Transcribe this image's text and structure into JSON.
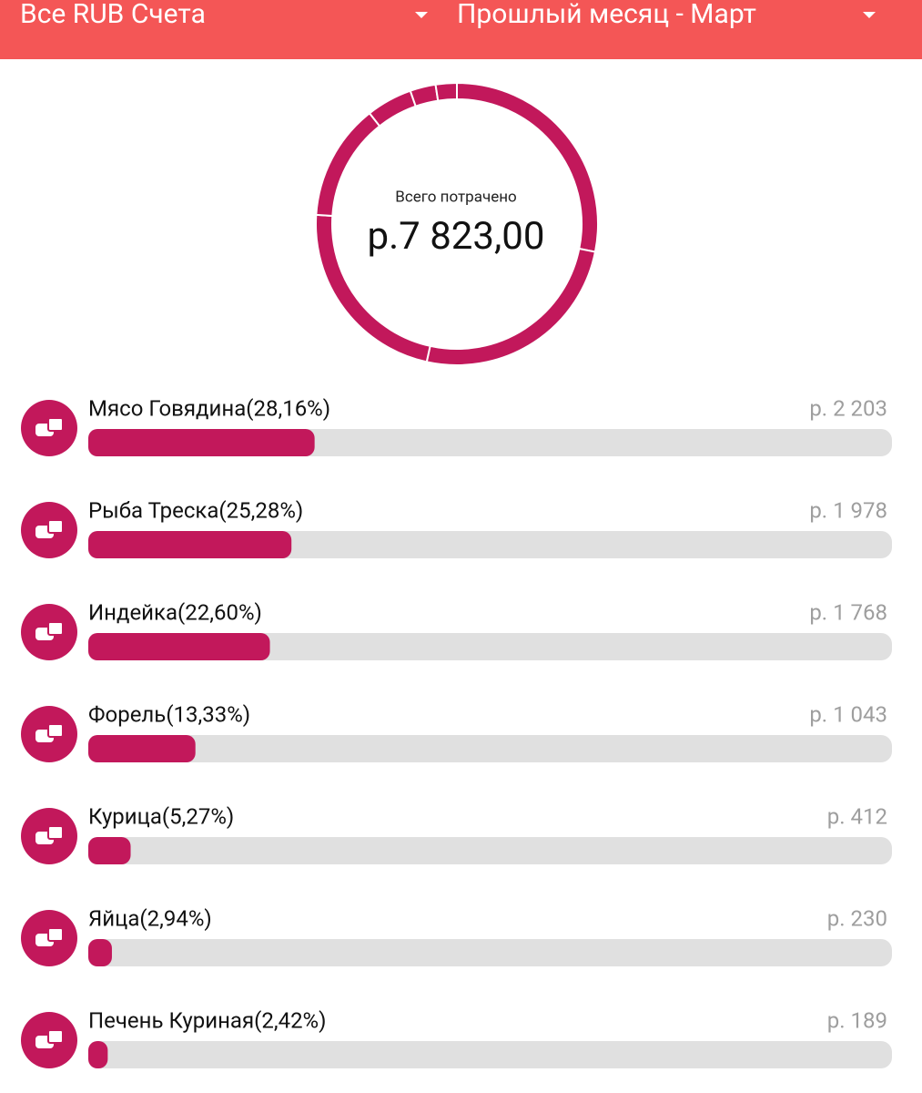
{
  "header": {
    "account": "Все RUB Счета",
    "period": "Прошлый месяц - Март"
  },
  "summary": {
    "label": "Всего потрачено",
    "total": "р.7 823,00"
  },
  "items": [
    {
      "label": "Мясо Говядина(28,16%)",
      "percent": 28.16,
      "amount": "р. 2 203"
    },
    {
      "label": "Рыба Треска(25,28%)",
      "percent": 25.28,
      "amount": "р. 1 978"
    },
    {
      "label": "Индейка(22,60%)",
      "percent": 22.6,
      "amount": "р. 1 768"
    },
    {
      "label": "Форель(13,33%)",
      "percent": 13.33,
      "amount": "р. 1 043"
    },
    {
      "label": "Курица(5,27%)",
      "percent": 5.27,
      "amount": "р. 412"
    },
    {
      "label": "Яйца(2,94%)",
      "percent": 2.94,
      "amount": "р. 230"
    },
    {
      "label": "Печень Куриная(2,42%)",
      "percent": 2.42,
      "amount": "р. 189"
    }
  ]
}
